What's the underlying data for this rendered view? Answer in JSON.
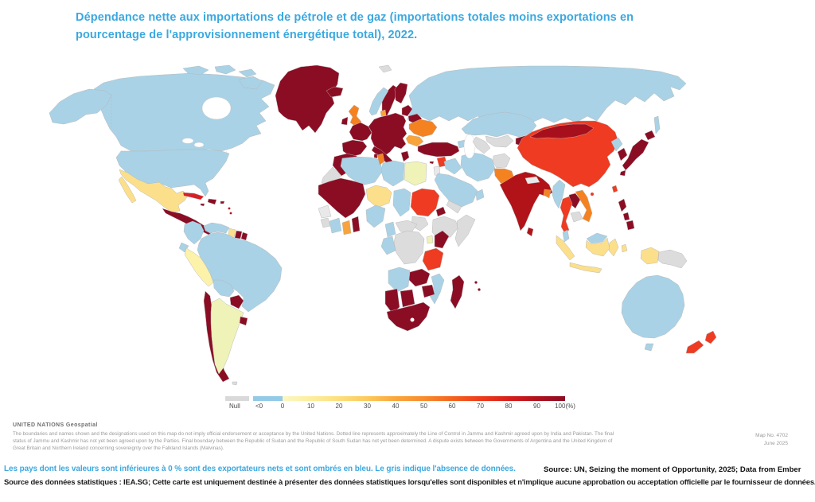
{
  "title": {
    "line1": "Dépendance nette aux importations de pétrole et de gaz (importations totales moins exportations en",
    "line2": "pourcentage de l'approvisionnement énergétique total), 2022.",
    "color": "#3BA8E0"
  },
  "legend": {
    "null_label": "Null",
    "lt0_label": "<0",
    "null_color": "#d9d9d9",
    "lt0_color": "#93cae5",
    "ticks": [
      "0",
      "10",
      "20",
      "30",
      "40",
      "50",
      "60",
      "70",
      "80",
      "90",
      "100"
    ],
    "unit": "(%)",
    "gradient": [
      "#fbf7c4",
      "#fcee9f",
      "#fcdf7d",
      "#fcc95c",
      "#faa63c",
      "#f88c2e",
      "#f4641f",
      "#ee3c1c",
      "#d81f1b",
      "#b0121e",
      "#8b0d24"
    ]
  },
  "attribution": {
    "org": "UNITED NATIONS Geospatial",
    "line1": "The boundaries and names shown and the designations used on this map do not imply official endorsement or acceptance by the United Nations. Dotted line represents approximately the Line of Control in Jammu and Kashmir agreed upon by India and Pakistan. The final",
    "line2": "status of Jammu and Kashmir has not yet been agreed upon by the Parties. Final boundary between the Republic of Sudan and the Republic of South Sudan has not yet been determined. A dispute exists between the Governments of Argentina and the United Kingdom of",
    "line3": "Great Britain and Northern Ireland concerning sovereignty over the Falkland Islands (Malvinas).",
    "map_no": "Map No. 4702",
    "date": "June 2025"
  },
  "notes": {
    "note_fr": "Les pays dont les valeurs sont inférieures à 0 % sont des exportateurs nets et sont ombrés en bleu. Le gris indique l'absence de données.",
    "source_en": "Source: UN, Seizing the moment of Opportunity, 2025; Data from Ember",
    "source_fr": "Source des données statistiques : IEA.SG; Cette carte est uniquement destinée à présenter des données statistiques lorsqu'elles sont disponibles et n'implique aucune approbation ou acceptation officielle par le fournisseur de données."
  },
  "map": {
    "ocean": "#ffffff",
    "border": "#b5b5b5",
    "fills": {
      "russia": "#a9d2e6",
      "sakhalin": "#a9d2e6",
      "canada": "#a9d2e6",
      "arctic1": "#a9d2e6",
      "arctic2": "#a9d2e6",
      "arctic3": "#a9d2e6",
      "baffin": "#a9d2e6",
      "alaska": "#a9d2e6",
      "usa": "#a9d2e6",
      "greenland": "#8b0d24",
      "iceland": "#8b0d24",
      "svalbard": "#dcdcdc",
      "mexico": "#fcdf8b",
      "baja": "#fcdf8b",
      "central_america": "#8b0d24",
      "cuba": "#d62027",
      "hispaniola": "#8b0d24",
      "jamaica": "#8b0d24",
      "puerto_rico": "#8b0d24",
      "antilles1": "#b0121e",
      "antilles2": "#b0121e",
      "colombia": "#a9d2e6",
      "venezuela": "#a9d2e6",
      "guyana": "#fcdf8b",
      "suriname": "#8b0d24",
      "french_guiana": "#8b0d24",
      "ecuador": "#a9d2e6",
      "peru": "#fdf2a9",
      "brazil": "#a9d2e6",
      "bolivia": "#a9d2e6",
      "paraguay": "#8b0d24",
      "chile": "#8b0d24",
      "argentina": "#eff3b8",
      "uruguay": "#8b0d24",
      "falklands": "#dcdcdc",
      "norway": "#a9d2e6",
      "sweden": "#8b0d24",
      "finland": "#8b0d24",
      "uk": "#f58220",
      "ireland": "#8b0d24",
      "denmark": "#f8a33b",
      "iberia": "#8b0d24",
      "france": "#8b0d24",
      "central_europe": "#8b0d24",
      "italy": "#8b0d24",
      "sicily": "#8b0d24",
      "sardinia": "#8b0d24",
      "greece": "#8b0d24",
      "baltics": "#8b0d24",
      "belarus": "#8b0d24",
      "ukraine": "#f58220",
      "romania": "#f8a33b",
      "turkey": "#8b0d24",
      "cyprus": "#8b0d24",
      "syria": "#ee3b22",
      "levant": "#e9e9e9",
      "caucasus": "#a9d2e6",
      "iraq": "#a9d2e6",
      "iran": "#a9d2e6",
      "saudi": "#a9d2e6",
      "yemen": "#dcdcdc",
      "oman": "#a9d2e6",
      "kazakhstan": "#a9d2e6",
      "uzbekistan": "#dcdcdc",
      "turkmenistan": "#dcdcdc",
      "afghanistan": "#dcdcdc",
      "kyrgyz_tajik": "#8b0d24",
      "pakistan": "#f58220",
      "india": "#b11318",
      "nepal": "#e9e9e9",
      "bangladesh": "#f58220",
      "sri_lanka": "#b11318",
      "china": "#ee3b22",
      "mongolia": "#a60f1b",
      "hainan": "#ee3b22",
      "north_korea": "#a9d2e6",
      "south_korea": "#8b0d24",
      "hokkaido": "#8b0d24",
      "honshu": "#8b0d24",
      "kyushu": "#8b0d24",
      "taiwan": "#ee3b22",
      "luzon": "#8b0d24",
      "visayas": "#8b0d24",
      "mindanao": "#8b0d24",
      "myanmar": "#a9d2e6",
      "thailand": "#ee3b22",
      "laos": "#8b0d24",
      "vietnam": "#f58220",
      "cambodia": "#dcdcdc",
      "malay_peninsula": "#a9d2e6",
      "malaysia_borneo": "#a9d2e6",
      "kalimantan": "#fcdf8b",
      "sumatra": "#fcdf8b",
      "java": "#fcdf8b",
      "sulawesi": "#fcdf8b",
      "moluccas": "#fcdf8b",
      "papua_idn": "#fcdf8b",
      "png": "#dcdcdc",
      "australia": "#a9d2e6",
      "tasmania": "#a9d2e6",
      "nz_north": "#ee3b22",
      "nz_south": "#ee3b22",
      "morocco": "#8b0d24",
      "western_sahara": "#dcdcdc",
      "algeria": "#a9d2e6",
      "tunisia": "#f58220",
      "libya": "#a9d2e6",
      "egypt": "#eff3b8",
      "mauritania_mali": "#8b0d24",
      "niger": "#fcdf8b",
      "chad": "#a9d2e6",
      "sudan": "#ee3b22",
      "south_sudan": "#dcdcdc",
      "eritrea": "#8b0d24",
      "ethiopia": "#dcdcdc",
      "somalia": "#dcdcdc",
      "guinea_region": "#e9e9e9",
      "sierra_liberia": "#dcdcdc",
      "cote_divoire": "#a9d2e6",
      "ghana": "#f8a33b",
      "togo_benin": "#8b0d24",
      "nigeria": "#a9d2e6",
      "cameroon": "#a9d2e6",
      "car": "#dcdcdc",
      "drc": "#dcdcdc",
      "gabon_congo": "#a9d2e6",
      "uganda": "#eff3b8",
      "kenya": "#8b0d24",
      "tanzania": "#ee3b22",
      "angola": "#a9d2e6",
      "zambia": "#8b0d24",
      "zimbabwe": "#8b0d24",
      "mozambique": "#a9d2e6",
      "namibia": "#8b0d24",
      "botswana": "#8b0d24",
      "south_africa": "#8b0d24",
      "lesotho": "#ffffff",
      "madagascar": "#8b0d24",
      "mauritius": "#8b0d24",
      "reunion": "#8b0d24"
    }
  }
}
